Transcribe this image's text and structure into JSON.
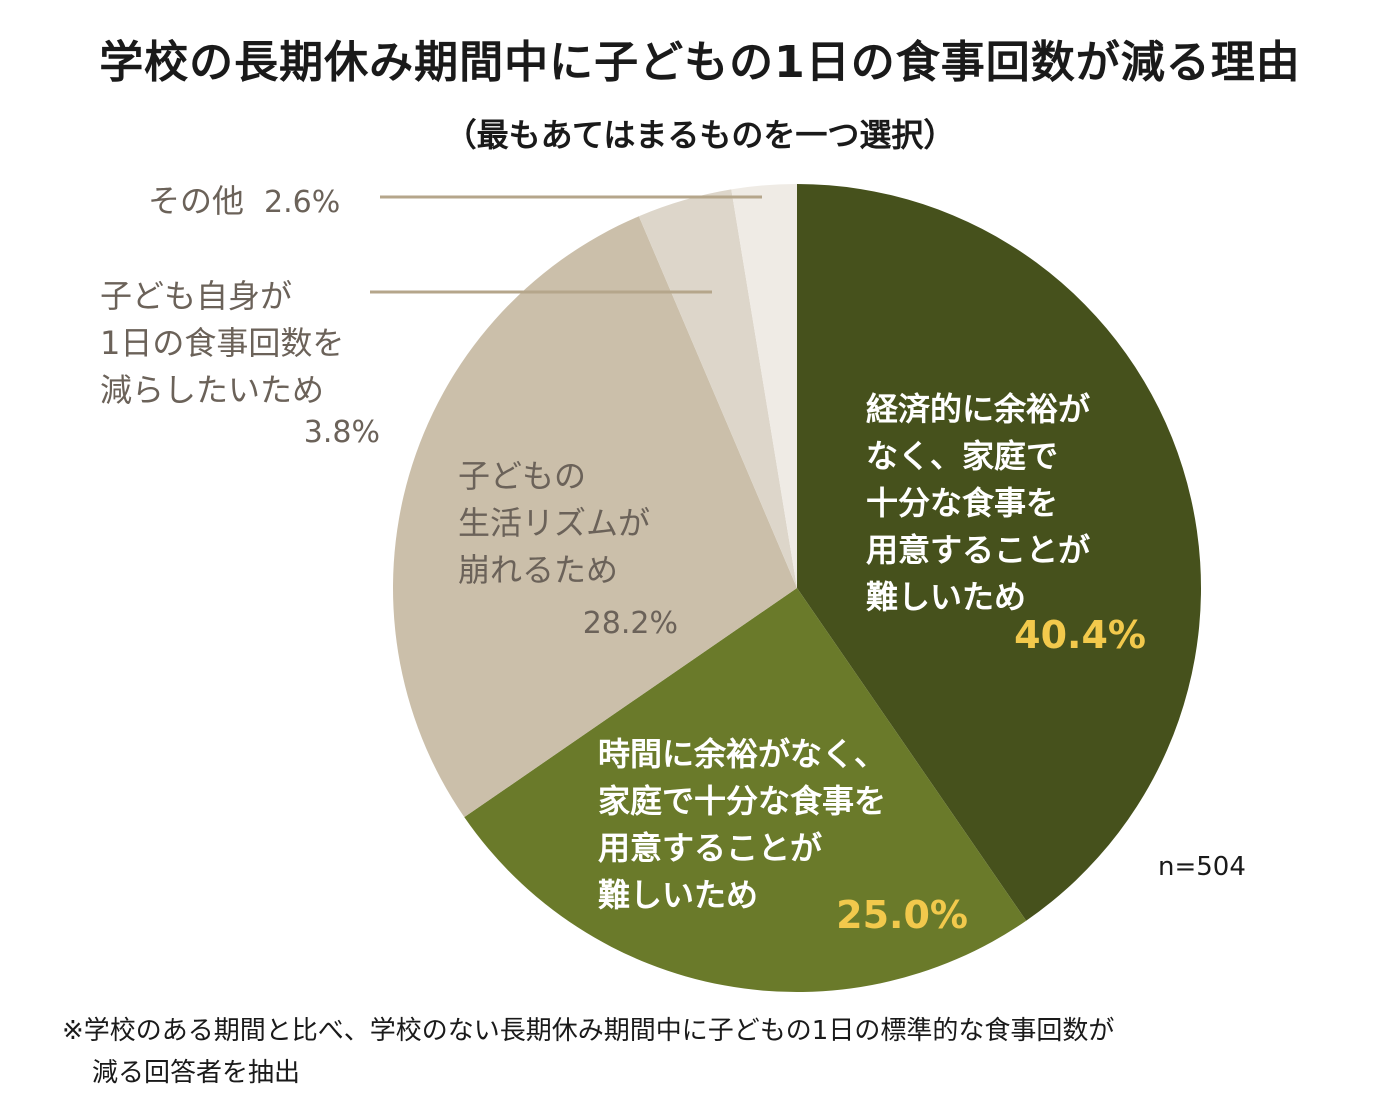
{
  "colors": {
    "slice_0": "#46511c",
    "slice_1": "#6a7a2a",
    "slice_2": "#cbbfaa",
    "slice_3": "#ddd6ca",
    "slice_4": "#efebe5",
    "label_light": "#ffffff",
    "label_dark": "#6b6259",
    "value_highlight": "#f2c94c",
    "leader_line": "#b5a68b"
  },
  "chart_data": {
    "type": "pie",
    "title": "学校の長期休み期間中に子どもの1日の食事回数が減る理由",
    "subtitle": "（最もあてはまるものを一つ選択）",
    "sample_size": "n=504",
    "slices": [
      {
        "label_lines": [
          "経済的に余裕が",
          "なく、家庭で",
          "十分な食事を",
          "用意することが",
          "難しいため"
        ],
        "value": 40.4,
        "value_label": "40.4%"
      },
      {
        "label_lines": [
          "時間に余裕がなく、",
          "家庭で十分な食事を",
          "用意することが",
          "難しいため"
        ],
        "value": 25.0,
        "value_label": "25.0%"
      },
      {
        "label_lines": [
          "子どもの",
          "生活リズムが",
          "崩れるため"
        ],
        "value": 28.2,
        "value_label": "28.2%"
      },
      {
        "label_lines": [
          "子ども自身が",
          "1日の食事回数を",
          "減らしたいため"
        ],
        "value": 3.8,
        "value_label": "3.8%"
      },
      {
        "label_lines": [
          "その他"
        ],
        "value": 2.6,
        "value_label": "2.6%"
      }
    ]
  },
  "footnote": {
    "line1": "※学校のある期間と比べ、学校のない長期休み期間中に子どもの1日の標準的な食事回数が",
    "line2": "減る回答者を抽出"
  }
}
